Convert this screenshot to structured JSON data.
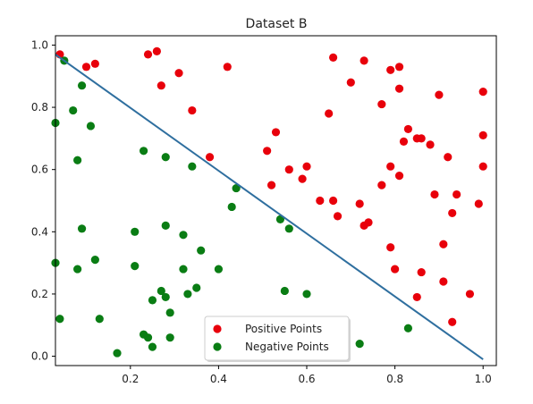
{
  "chart_data": {
    "type": "scatter",
    "title": "Dataset B",
    "xlabel": "",
    "ylabel": "",
    "xlim": [
      0.03,
      1.03
    ],
    "ylim": [
      -0.03,
      1.03
    ],
    "x_ticks": [
      0.2,
      0.4,
      0.6,
      0.8,
      1.0
    ],
    "x_tick_labels": [
      "0.2",
      "0.4",
      "0.6",
      "0.8",
      "1.0"
    ],
    "y_ticks": [
      0.0,
      0.2,
      0.4,
      0.6,
      0.8,
      1.0
    ],
    "y_tick_labels": [
      "0.0",
      "0.2",
      "0.4",
      "0.6",
      "0.8",
      "1.0"
    ],
    "grid": false,
    "legend_position": "bottom-center",
    "colors": {
      "positive": "#e8000b",
      "negative": "#0a7d14",
      "line": "#2f6f9f",
      "axes": "#000000"
    },
    "series": [
      {
        "name": "Positive Points",
        "marker": "circle",
        "points": [
          [
            0.04,
            0.97
          ],
          [
            0.1,
            0.93
          ],
          [
            0.12,
            0.94
          ],
          [
            0.24,
            0.97
          ],
          [
            0.26,
            0.98
          ],
          [
            0.27,
            0.87
          ],
          [
            0.31,
            0.91
          ],
          [
            0.34,
            0.79
          ],
          [
            0.38,
            0.64
          ],
          [
            0.42,
            0.93
          ],
          [
            0.51,
            0.66
          ],
          [
            0.52,
            0.55
          ],
          [
            0.53,
            0.72
          ],
          [
            0.56,
            0.6
          ],
          [
            0.59,
            0.57
          ],
          [
            0.6,
            0.61
          ],
          [
            0.63,
            0.5
          ],
          [
            0.65,
            0.78
          ],
          [
            0.66,
            0.96
          ],
          [
            0.66,
            0.5
          ],
          [
            0.67,
            0.45
          ],
          [
            0.7,
            0.88
          ],
          [
            0.72,
            0.49
          ],
          [
            0.73,
            0.95
          ],
          [
            0.73,
            0.42
          ],
          [
            0.74,
            0.43
          ],
          [
            0.77,
            0.81
          ],
          [
            0.77,
            0.55
          ],
          [
            0.79,
            0.92
          ],
          [
            0.79,
            0.61
          ],
          [
            0.79,
            0.35
          ],
          [
            0.8,
            0.28
          ],
          [
            0.81,
            0.86
          ],
          [
            0.81,
            0.93
          ],
          [
            0.81,
            0.58
          ],
          [
            0.82,
            0.69
          ],
          [
            0.83,
            0.73
          ],
          [
            0.85,
            0.7
          ],
          [
            0.85,
            0.19
          ],
          [
            0.86,
            0.27
          ],
          [
            0.86,
            0.7
          ],
          [
            0.88,
            0.68
          ],
          [
            0.89,
            0.52
          ],
          [
            0.9,
            0.84
          ],
          [
            0.91,
            0.36
          ],
          [
            0.91,
            0.24
          ],
          [
            0.92,
            0.64
          ],
          [
            0.93,
            0.11
          ],
          [
            0.93,
            0.46
          ],
          [
            0.94,
            0.52
          ],
          [
            0.97,
            0.2
          ],
          [
            0.99,
            0.49
          ],
          [
            1.0,
            0.85
          ],
          [
            1.0,
            0.71
          ],
          [
            1.0,
            0.61
          ]
        ]
      },
      {
        "name": "Negative Points",
        "marker": "circle",
        "points": [
          [
            0.03,
            0.75
          ],
          [
            0.03,
            0.3
          ],
          [
            0.04,
            0.12
          ],
          [
            0.05,
            0.95
          ],
          [
            0.07,
            0.79
          ],
          [
            0.08,
            0.63
          ],
          [
            0.08,
            0.28
          ],
          [
            0.09,
            0.41
          ],
          [
            0.09,
            0.87
          ],
          [
            0.11,
            0.74
          ],
          [
            0.12,
            0.31
          ],
          [
            0.13,
            0.12
          ],
          [
            0.17,
            0.01
          ],
          [
            0.21,
            0.4
          ],
          [
            0.21,
            0.29
          ],
          [
            0.23,
            0.66
          ],
          [
            0.23,
            0.07
          ],
          [
            0.24,
            0.06
          ],
          [
            0.25,
            0.03
          ],
          [
            0.25,
            0.18
          ],
          [
            0.27,
            0.21
          ],
          [
            0.28,
            0.42
          ],
          [
            0.28,
            0.19
          ],
          [
            0.28,
            0.64
          ],
          [
            0.29,
            0.06
          ],
          [
            0.29,
            0.14
          ],
          [
            0.32,
            0.39
          ],
          [
            0.32,
            0.28
          ],
          [
            0.33,
            0.2
          ],
          [
            0.34,
            0.61
          ],
          [
            0.35,
            0.22
          ],
          [
            0.36,
            0.34
          ],
          [
            0.4,
            0.28
          ],
          [
            0.43,
            0.48
          ],
          [
            0.44,
            0.54
          ],
          [
            0.54,
            0.44
          ],
          [
            0.55,
            0.21
          ],
          [
            0.56,
            0.41
          ],
          [
            0.6,
            0.2
          ],
          [
            0.72,
            0.04
          ],
          [
            0.83,
            0.09
          ]
        ]
      }
    ],
    "line": {
      "points": [
        [
          0.03,
          0.97
        ],
        [
          1.0,
          -0.01
        ]
      ]
    }
  }
}
